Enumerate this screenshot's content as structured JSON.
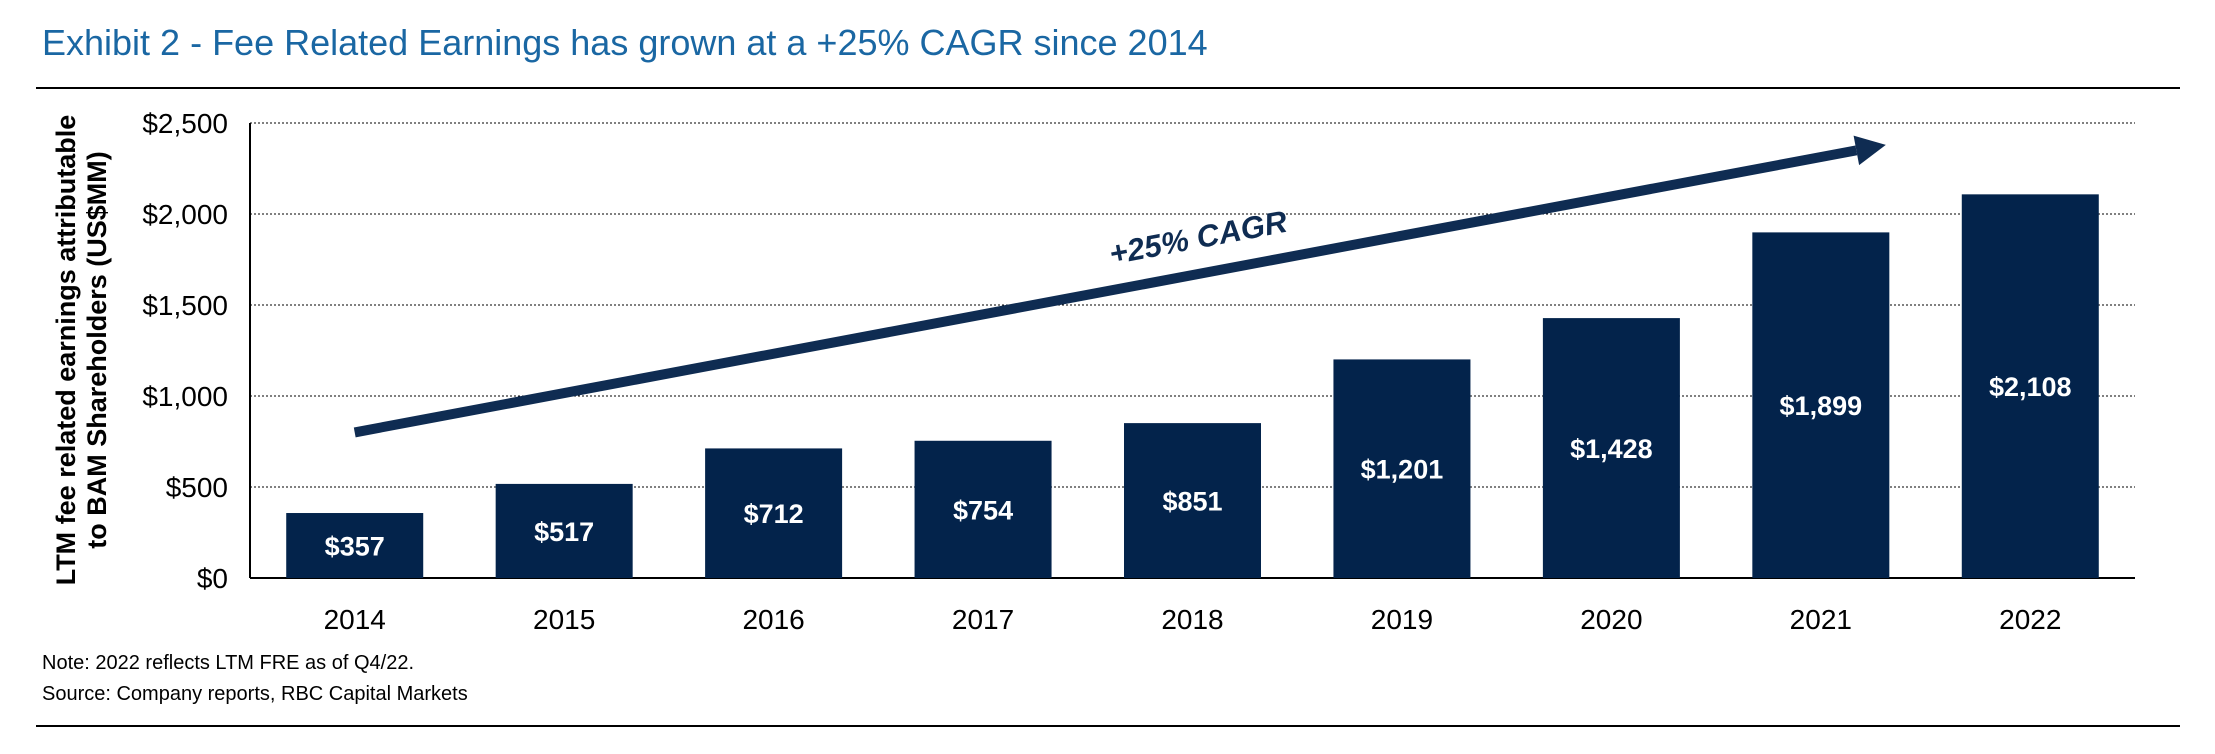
{
  "exhibit": {
    "title": "Exhibit 2 - Fee Related Earnings has grown at a +25% CAGR since 2014"
  },
  "notes": {
    "note": "Note: 2022 reflects LTM FRE as of Q4/22.",
    "source": "Source: Company reports, RBC Capital Markets"
  },
  "chart_data": {
    "type": "bar",
    "title": "Exhibit 2 - Fee Related Earnings has grown at a +25% CAGR since 2014",
    "categories": [
      "2014",
      "2015",
      "2016",
      "2017",
      "2018",
      "2019",
      "2020",
      "2021",
      "2022"
    ],
    "values": [
      357,
      517,
      712,
      754,
      851,
      1201,
      1428,
      1899,
      2108
    ],
    "value_labels": [
      "$357",
      "$517",
      "$712",
      "$754",
      "$851",
      "$1,201",
      "$1,428",
      "$1,899",
      "$2,108"
    ],
    "xlabel": "",
    "ylabel_lines": [
      "LTM fee related earnings attributable",
      "to BAM Shareholders (US$MM)"
    ],
    "ylim": [
      0,
      2500
    ],
    "yticks": [
      0,
      500,
      1000,
      1500,
      2000,
      2500
    ],
    "ytick_labels": [
      "$0",
      "$500",
      "$1,000",
      "$1,500",
      "$2,000",
      "$2,500"
    ],
    "grid": "horizontal dotted",
    "legend": "none",
    "annotation": {
      "text": "+25% CAGR",
      "arrow_from": {
        "category": "2014",
        "value": 800
      },
      "arrow_to": {
        "category": "2021",
        "value": 2380
      }
    },
    "colors": {
      "bar": "#03234b",
      "arrow": "#0f2c52",
      "title": "#1a67a3"
    }
  }
}
